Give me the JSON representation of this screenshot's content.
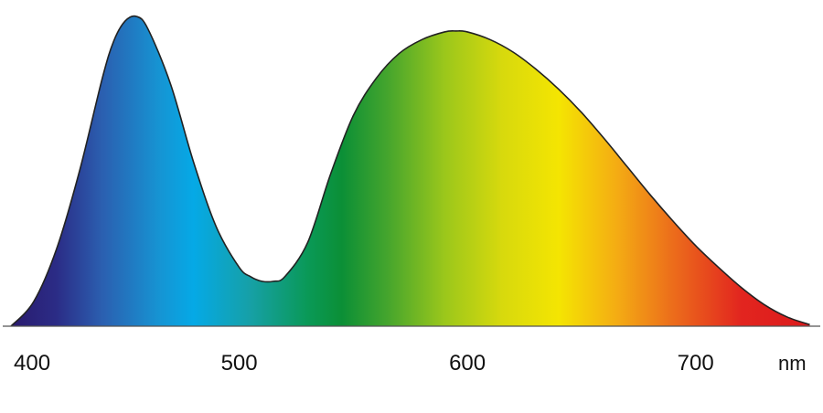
{
  "chart_data": {
    "type": "area",
    "title": "",
    "xlabel": "",
    "ylabel": "",
    "x_unit": "nm",
    "xlim": [
      398,
      753
    ],
    "ylim": [
      0,
      1.0
    ],
    "grid": false,
    "x_ticks": [
      {
        "value": 400,
        "label": "400"
      },
      {
        "value": 500,
        "label": "500"
      },
      {
        "value": 600,
        "label": "600"
      },
      {
        "value": 700,
        "label": "700"
      }
    ],
    "series": [
      {
        "x": [
          400,
          410,
          420,
          430,
          440,
          445,
          450,
          455,
          460,
          470,
          480,
          490,
          500,
          505,
          510,
          515,
          520,
          530,
          540,
          550,
          560,
          570,
          580,
          590,
          595,
          600,
          610,
          620,
          630,
          640,
          650,
          660,
          670,
          680,
          690,
          700,
          710,
          720,
          730,
          740,
          750
        ],
        "values": [
          0.0,
          0.08,
          0.25,
          0.5,
          0.8,
          0.92,
          0.985,
          1.0,
          0.96,
          0.78,
          0.53,
          0.32,
          0.19,
          0.16,
          0.145,
          0.145,
          0.16,
          0.27,
          0.49,
          0.68,
          0.8,
          0.88,
          0.925,
          0.95,
          0.953,
          0.95,
          0.925,
          0.885,
          0.83,
          0.765,
          0.69,
          0.605,
          0.515,
          0.425,
          0.34,
          0.26,
          0.19,
          0.125,
          0.07,
          0.03,
          0.005
        ]
      }
    ],
    "fill_gradient": [
      {
        "wavelength": 400,
        "color": "#2a1a6e"
      },
      {
        "wavelength": 420,
        "color": "#2b2c86"
      },
      {
        "wavelength": 440,
        "color": "#2b5fb0"
      },
      {
        "wavelength": 465,
        "color": "#1694d3"
      },
      {
        "wavelength": 480,
        "color": "#05a9e6"
      },
      {
        "wavelength": 505,
        "color": "#16a0a6"
      },
      {
        "wavelength": 530,
        "color": "#0a9957"
      },
      {
        "wavelength": 545,
        "color": "#0b8f36"
      },
      {
        "wavelength": 565,
        "color": "#45a52d"
      },
      {
        "wavelength": 590,
        "color": "#9bc71b"
      },
      {
        "wavelength": 615,
        "color": "#d7d90d"
      },
      {
        "wavelength": 640,
        "color": "#f4e502"
      },
      {
        "wavelength": 665,
        "color": "#f4ad13"
      },
      {
        "wavelength": 690,
        "color": "#ec6d1b"
      },
      {
        "wavelength": 720,
        "color": "#e2251f"
      },
      {
        "wavelength": 750,
        "color": "#dc1a1c"
      }
    ],
    "outline_color": "#222222"
  }
}
